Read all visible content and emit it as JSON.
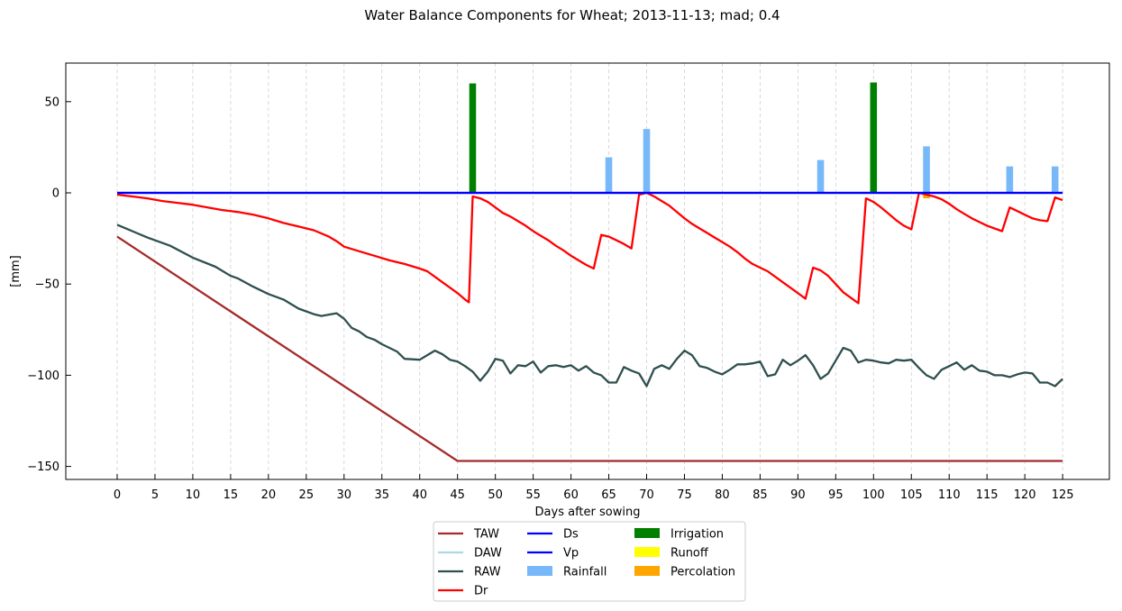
{
  "chart_data": {
    "type": "line",
    "title": "Water Balance Components for Wheat; 2013-11-13; mad; 0.4",
    "xlabel": "Days after sowing",
    "ylabel": "[mm]",
    "xlim": [
      -7,
      128
    ],
    "ylim": [
      -157,
      71
    ],
    "x_ticks": [
      0,
      5,
      10,
      15,
      20,
      25,
      30,
      35,
      40,
      45,
      50,
      55,
      60,
      65,
      70,
      75,
      80,
      85,
      90,
      95,
      100,
      105,
      110,
      115,
      120,
      125
    ],
    "y_ticks": [
      50,
      0,
      -50,
      -100,
      -150
    ],
    "y_tick_labels": [
      "50",
      "0",
      "−50",
      "−100",
      "−150"
    ],
    "x_grid": true,
    "y_grid": false,
    "legend_position": "below plot, centered",
    "series": [
      {
        "name": "TAW",
        "kind": "line",
        "color": "#a52a2a",
        "points": [
          [
            0,
            -24
          ],
          [
            45,
            -147
          ],
          [
            125,
            -147
          ]
        ]
      },
      {
        "name": "DAW",
        "kind": "line",
        "color": "#add8e6",
        "hidden": true,
        "points": []
      },
      {
        "name": "RAW",
        "kind": "line",
        "color": "#2f4f4f",
        "points": [
          [
            0,
            -17.5
          ],
          [
            2,
            -21
          ],
          [
            4,
            -24.5
          ],
          [
            7,
            -29
          ],
          [
            10,
            -35.5
          ],
          [
            13,
            -40.5
          ],
          [
            15,
            -45.5
          ],
          [
            16,
            -47
          ],
          [
            18,
            -51.5
          ],
          [
            20,
            -55.5
          ],
          [
            22,
            -58.5
          ],
          [
            24,
            -63.5
          ],
          [
            26,
            -66.5
          ],
          [
            27,
            -67.5
          ],
          [
            29,
            -66
          ],
          [
            30,
            -69
          ],
          [
            31,
            -74
          ],
          [
            32,
            -76
          ],
          [
            33,
            -79
          ],
          [
            34,
            -80.5
          ],
          [
            35,
            -83
          ],
          [
            36,
            -85
          ],
          [
            37,
            -87
          ],
          [
            38,
            -91
          ],
          [
            40,
            -91.5
          ],
          [
            41,
            -89
          ],
          [
            42,
            -86.5
          ],
          [
            43,
            -88.5
          ],
          [
            44,
            -91.5
          ],
          [
            45,
            -92.5
          ],
          [
            46,
            -95
          ],
          [
            47,
            -98
          ],
          [
            48,
            -103
          ],
          [
            49,
            -98
          ],
          [
            50,
            -91
          ],
          [
            51,
            -92
          ],
          [
            52,
            -99
          ],
          [
            53,
            -94.5
          ],
          [
            54,
            -95
          ],
          [
            55,
            -92.5
          ],
          [
            56,
            -98.5
          ],
          [
            57,
            -95
          ],
          [
            58,
            -94.5
          ],
          [
            59,
            -95.5
          ],
          [
            60,
            -94.5
          ],
          [
            61,
            -97.5
          ],
          [
            62,
            -95
          ],
          [
            63,
            -98.5
          ],
          [
            64,
            -100
          ],
          [
            65,
            -104
          ],
          [
            66,
            -104
          ],
          [
            67,
            -95.5
          ],
          [
            68,
            -97.5
          ],
          [
            69,
            -99
          ],
          [
            70,
            -106
          ],
          [
            71,
            -96.5
          ],
          [
            72,
            -94.5
          ],
          [
            73,
            -96.5
          ],
          [
            74,
            -91
          ],
          [
            75,
            -86.5
          ],
          [
            76,
            -89
          ],
          [
            77,
            -95
          ],
          [
            78,
            -96
          ],
          [
            79,
            -98
          ],
          [
            80,
            -99.5
          ],
          [
            81,
            -97
          ],
          [
            82,
            -94
          ],
          [
            83,
            -94
          ],
          [
            84,
            -93.5
          ],
          [
            85,
            -92.5
          ],
          [
            86,
            -100.5
          ],
          [
            87,
            -99.5
          ],
          [
            88,
            -91.5
          ],
          [
            89,
            -94.5
          ],
          [
            90,
            -92
          ],
          [
            91,
            -89
          ],
          [
            92,
            -94.5
          ],
          [
            93,
            -102
          ],
          [
            94,
            -99
          ],
          [
            95,
            -92
          ],
          [
            96,
            -85
          ],
          [
            97,
            -86.5
          ],
          [
            98,
            -93
          ],
          [
            99,
            -91.5
          ],
          [
            100,
            -92
          ],
          [
            101,
            -93
          ],
          [
            102,
            -93.5
          ],
          [
            103,
            -91.5
          ],
          [
            104,
            -92
          ],
          [
            105,
            -91.5
          ],
          [
            106,
            -96
          ],
          [
            107,
            -100
          ],
          [
            108,
            -102
          ],
          [
            109,
            -97
          ],
          [
            110,
            -95
          ],
          [
            111,
            -93
          ],
          [
            112,
            -97
          ],
          [
            113,
            -94.5
          ],
          [
            114,
            -97.5
          ],
          [
            115,
            -98
          ],
          [
            116,
            -100
          ],
          [
            117,
            -100
          ],
          [
            118,
            -101
          ],
          [
            119,
            -99.5
          ],
          [
            120,
            -98.5
          ],
          [
            121,
            -99
          ],
          [
            122,
            -104
          ],
          [
            123,
            -104
          ],
          [
            124,
            -106
          ],
          [
            125,
            -102
          ]
        ]
      },
      {
        "name": "Dr",
        "kind": "line",
        "color": "#ff0000",
        "points": [
          [
            0,
            -1
          ],
          [
            2,
            -2
          ],
          [
            4,
            -3
          ],
          [
            6,
            -4.5
          ],
          [
            8,
            -5.5
          ],
          [
            10,
            -6.5
          ],
          [
            12,
            -8
          ],
          [
            14,
            -9.5
          ],
          [
            16,
            -10.5
          ],
          [
            18,
            -12
          ],
          [
            20,
            -14
          ],
          [
            22,
            -16.5
          ],
          [
            24,
            -18.5
          ],
          [
            26,
            -20.5
          ],
          [
            28,
            -24
          ],
          [
            29,
            -26.5
          ],
          [
            30,
            -29.5
          ],
          [
            32,
            -32
          ],
          [
            34,
            -34.5
          ],
          [
            36,
            -37
          ],
          [
            38,
            -39
          ],
          [
            40,
            -41.5
          ],
          [
            41,
            -43
          ],
          [
            42,
            -46
          ],
          [
            43,
            -49
          ],
          [
            44,
            -52
          ],
          [
            45,
            -55
          ],
          [
            46,
            -58.5
          ],
          [
            46.5,
            -60
          ],
          [
            47,
            -2
          ],
          [
            48,
            -3
          ],
          [
            49,
            -5
          ],
          [
            50,
            -8
          ],
          [
            51,
            -11
          ],
          [
            52,
            -13
          ],
          [
            53,
            -15.5
          ],
          [
            54,
            -18
          ],
          [
            55,
            -21
          ],
          [
            56,
            -23.5
          ],
          [
            57,
            -26
          ],
          [
            58,
            -29
          ],
          [
            59,
            -31.5
          ],
          [
            60,
            -34.5
          ],
          [
            61,
            -37
          ],
          [
            62,
            -39.5
          ],
          [
            63,
            -41.5
          ],
          [
            64,
            -23
          ],
          [
            65,
            -24
          ],
          [
            66,
            -26
          ],
          [
            67,
            -28
          ],
          [
            68,
            -30.5
          ],
          [
            69,
            -1
          ],
          [
            70,
            0
          ],
          [
            71,
            -2
          ],
          [
            72,
            -4.5
          ],
          [
            73,
            -7
          ],
          [
            74,
            -10.5
          ],
          [
            75,
            -14
          ],
          [
            76,
            -17
          ],
          [
            77,
            -19.5
          ],
          [
            78,
            -22
          ],
          [
            79,
            -24.5
          ],
          [
            80,
            -27
          ],
          [
            81,
            -29.5
          ],
          [
            82,
            -32.5
          ],
          [
            83,
            -36
          ],
          [
            84,
            -39
          ],
          [
            85,
            -41
          ],
          [
            86,
            -43
          ],
          [
            87,
            -46
          ],
          [
            88,
            -49
          ],
          [
            89,
            -52
          ],
          [
            90,
            -55
          ],
          [
            91,
            -58
          ],
          [
            92,
            -41
          ],
          [
            93,
            -42.5
          ],
          [
            94,
            -45.5
          ],
          [
            95,
            -50
          ],
          [
            96,
            -54.5
          ],
          [
            97,
            -57.5
          ],
          [
            98,
            -60.5
          ],
          [
            99,
            -3
          ],
          [
            100,
            -5
          ],
          [
            101,
            -8
          ],
          [
            102,
            -11.5
          ],
          [
            103,
            -15
          ],
          [
            104,
            -18
          ],
          [
            105,
            -20
          ],
          [
            106,
            0
          ],
          [
            107,
            -1
          ],
          [
            108,
            -2
          ],
          [
            109,
            -3.5
          ],
          [
            110,
            -6
          ],
          [
            111,
            -9
          ],
          [
            112,
            -11.5
          ],
          [
            113,
            -14
          ],
          [
            114,
            -16
          ],
          [
            115,
            -18
          ],
          [
            116,
            -19.5
          ],
          [
            117,
            -21
          ],
          [
            118,
            -8
          ],
          [
            119,
            -10
          ],
          [
            120,
            -12
          ],
          [
            121,
            -14
          ],
          [
            122,
            -15
          ],
          [
            123,
            -15.5
          ],
          [
            124,
            -2.5
          ],
          [
            125,
            -4
          ]
        ]
      },
      {
        "name": "Ds",
        "kind": "line",
        "color": "#0000ff",
        "points": [
          [
            0,
            0
          ],
          [
            125,
            0
          ]
        ]
      },
      {
        "name": "Vp",
        "kind": "line",
        "color": "#0000ff",
        "points": [
          [
            0,
            0
          ],
          [
            125,
            0
          ]
        ]
      },
      {
        "name": "Rainfall",
        "kind": "bar",
        "color": "#77b8f8",
        "points": [
          [
            65,
            19.5
          ],
          [
            70,
            35
          ],
          [
            93,
            18
          ],
          [
            107,
            25.5
          ],
          [
            118,
            14.5
          ],
          [
            124,
            14.5
          ]
        ]
      },
      {
        "name": "Irrigation",
        "kind": "bar",
        "color": "#008000",
        "points": [
          [
            47,
            60
          ],
          [
            100,
            60.5
          ]
        ]
      },
      {
        "name": "Runoff",
        "kind": "bar",
        "color": "#ffff00",
        "points": []
      },
      {
        "name": "Percolation",
        "kind": "bar",
        "color": "#ffa500",
        "points": [
          [
            107,
            -3
          ]
        ]
      }
    ],
    "legend_columns": [
      [
        "TAW",
        "DAW",
        "RAW",
        "Dr"
      ],
      [
        "Ds",
        "Vp",
        "Rainfall"
      ],
      [
        "Irrigation",
        "Runoff",
        "Percolation"
      ]
    ]
  }
}
